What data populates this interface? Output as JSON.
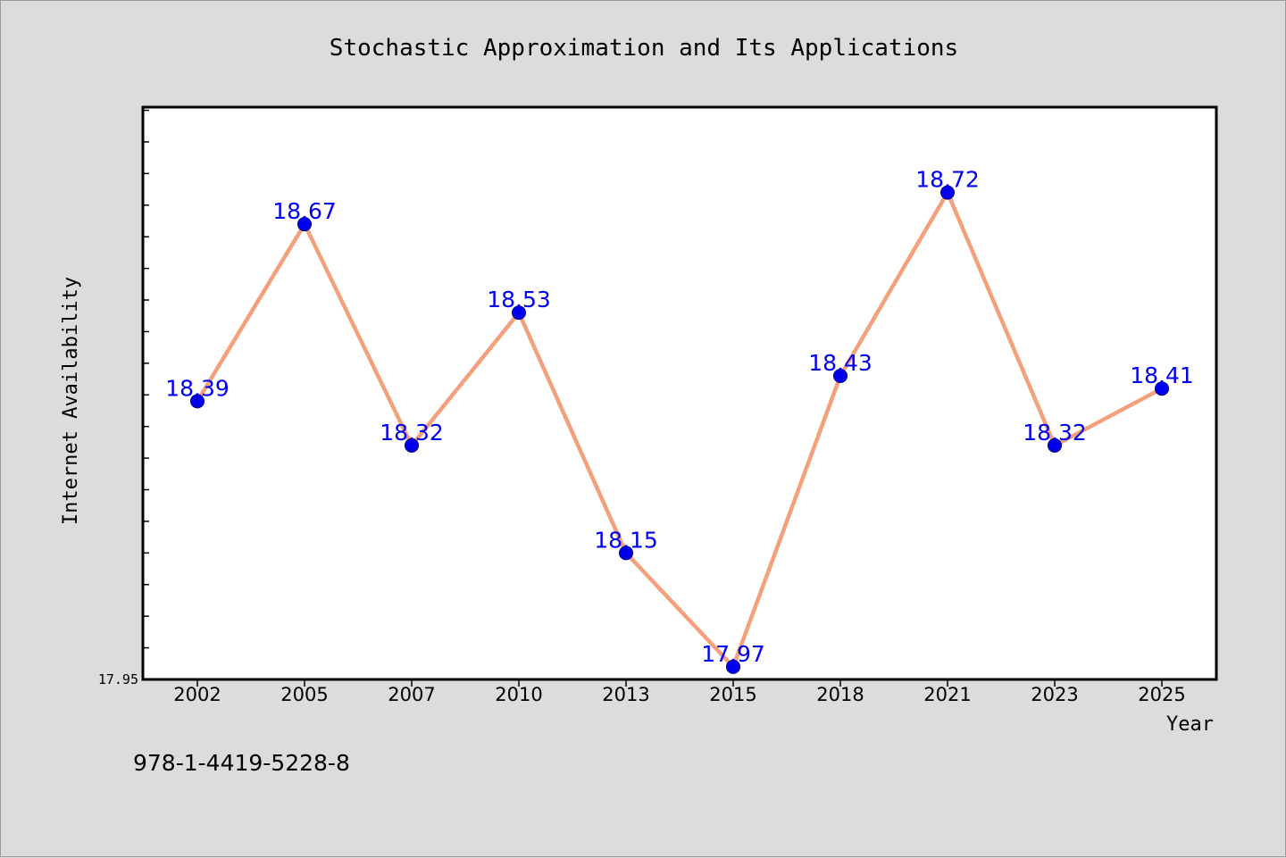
{
  "chart_data": {
    "type": "line",
    "title": "Stochastic Approximation and Its Applications",
    "xlabel": "Year",
    "ylabel": "Internet Availability",
    "categories": [
      "2002",
      "2005",
      "2007",
      "2010",
      "2013",
      "2015",
      "2018",
      "2021",
      "2023",
      "2025"
    ],
    "series": [
      {
        "values": [
          18.39,
          18.67,
          18.32,
          18.53,
          18.15,
          17.97,
          18.43,
          18.72,
          18.32,
          18.41
        ],
        "labels": [
          "18.39",
          "18.67",
          "18.32",
          "18.53",
          "18.15",
          "17.97",
          "18.43",
          "18.72",
          "18.32",
          "18.41"
        ],
        "line_color": "#f4a07c",
        "marker_color": "#0000ee"
      }
    ],
    "ylim": [
      17.95,
      18.855
    ],
    "y_minor_tick_step": 0.05,
    "y_tick_labels": [
      "17.95"
    ],
    "grid": false,
    "legend": false
  },
  "footer": {
    "isbn": "978-1-4419-5228-8"
  },
  "colors": {
    "background": "#dcdcdc",
    "plot_background": "#ffffff",
    "data_label": "#0000ee"
  }
}
